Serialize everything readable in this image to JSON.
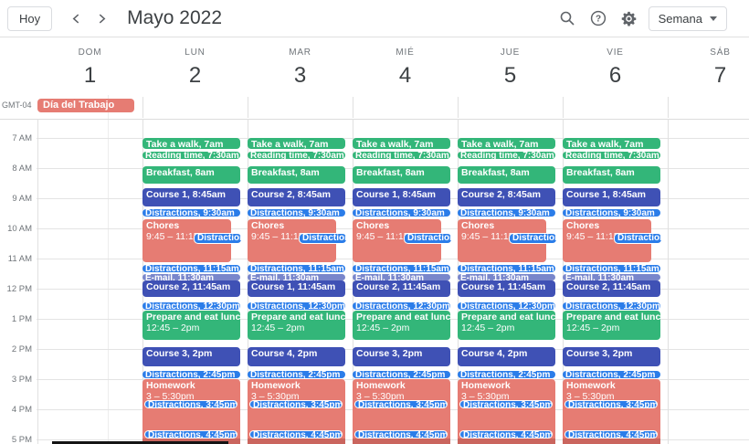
{
  "header": {
    "today_label": "Hoy",
    "title": "Mayo 2022",
    "view_label": "Semana",
    "timezone": "GMT-04"
  },
  "icons": [
    "chevron-left",
    "chevron-right",
    "search",
    "help",
    "settings",
    "chevron-down"
  ],
  "colors": {
    "green": "#33B679",
    "indigo": "#3F51B5",
    "blue": "#2B7DE9",
    "lavender": "#7986CB",
    "salmon": "#E67C73"
  },
  "time_labels": [
    "7 AM",
    "8 AM",
    "9 AM",
    "10 AM",
    "11 AM",
    "12 PM",
    "1 PM",
    "2 PM",
    "3 PM",
    "4 PM",
    "5 PM"
  ],
  "days": [
    {
      "name": "DOM",
      "num": "1",
      "allday": "Día del Trabajo"
    },
    {
      "name": "LUN",
      "num": "2",
      "courses": [
        "Course 1, 8:45am",
        "Course 2, 11:45am",
        "Course 3, 2pm"
      ]
    },
    {
      "name": "MAR",
      "num": "3",
      "courses": [
        "Course 2, 8:45am",
        "Course 1, 11:45am",
        "Course 4, 2pm"
      ]
    },
    {
      "name": "MIÉ",
      "num": "4",
      "courses": [
        "Course 1, 8:45am",
        "Course 2, 11:45am",
        "Course 3, 2pm"
      ]
    },
    {
      "name": "JUE",
      "num": "5",
      "courses": [
        "Course 2, 8:45am",
        "Course 1, 11:45am",
        "Course 4, 2pm"
      ]
    },
    {
      "name": "VIE",
      "num": "6",
      "courses": [
        "Course 1, 8:45am",
        "Course 2, 11:45am",
        "Course 3, 2pm"
      ]
    },
    {
      "name": "SÁB",
      "num": "7"
    }
  ],
  "event_template": [
    {
      "title": "Take a walk, 7am",
      "kind": "green",
      "start": 0,
      "end": 25
    },
    {
      "title": "Reading time, 7:30am",
      "kind": "green",
      "start": 28,
      "end": 44,
      "pill": true
    },
    {
      "title": "Breakfast, 8am",
      "kind": "green",
      "start": 56,
      "end": 93
    },
    {
      "slot": 0,
      "kind": "indigo",
      "start": 100,
      "end": 139
    },
    {
      "title": "Distractions, 9:30am",
      "kind": "blue",
      "start": 142,
      "end": 158,
      "pill": true
    },
    {
      "title": "Chores",
      "line2": "9:45 – 11:15am",
      "kind": "salmon",
      "start": 162,
      "end": 250,
      "narrow": true
    },
    {
      "title": "Distractions",
      "kind": "blue",
      "start": 189,
      "end": 211,
      "pill": true,
      "overlay": true,
      "ox": 56,
      "ow": 53
    },
    {
      "title": "Distractions, 11:15am",
      "kind": "blue",
      "start": 253,
      "end": 269,
      "pill": true
    },
    {
      "title": "E-mail, 11:30am",
      "kind": "lavender",
      "start": 270,
      "end": 283,
      "pill": true
    },
    {
      "slot": 1,
      "kind": "indigo",
      "start": 284,
      "end": 320
    },
    {
      "title": "Distractions, 12:30pm",
      "kind": "blue",
      "start": 327,
      "end": 342,
      "pill": true
    },
    {
      "title": "Prepare and eat lunch",
      "line2": "12:45 – 2pm",
      "kind": "green",
      "start": 344,
      "end": 405
    },
    {
      "slot": 2,
      "kind": "indigo",
      "start": 417,
      "end": 457
    },
    {
      "title": "Distractions, 2:45pm",
      "kind": "blue",
      "start": 464,
      "end": 480,
      "pill": true
    },
    {
      "title": "Homework",
      "line2": "3 – 5:30pm",
      "kind": "salmon",
      "start": 480,
      "end": 630,
      "homework": true
    },
    {
      "title": "Distractions, 3:45pm",
      "kind": "blue",
      "start": 522,
      "end": 540,
      "pill": true,
      "overlay": true,
      "ox": 2,
      "ow": 102
    },
    {
      "title": "Distractions, 4:45pm",
      "kind": "blue",
      "start": 582,
      "end": 600,
      "pill": true,
      "overlay": true,
      "ox": 2,
      "ow": 102
    }
  ]
}
